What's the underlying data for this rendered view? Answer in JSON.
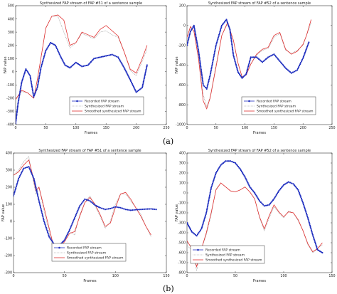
{
  "captions": [
    "(a)",
    "(b)"
  ],
  "chart_data": [
    {
      "type": "line",
      "title": "Synthesized FAP stream of FAP #51 of a sentence sample",
      "xlabel": "Frames",
      "ylabel": "FAP value",
      "xlim": [
        0,
        250
      ],
      "ylim": [
        -400,
        500
      ],
      "xticks": [
        0,
        50,
        100,
        150,
        200,
        250
      ],
      "yticks": [
        -400,
        -300,
        -200,
        -100,
        0,
        100,
        200,
        300,
        400,
        500
      ],
      "legend_position": "bottom-right",
      "series": [
        {
          "name": "Recorded FAP stream",
          "color": "#1f2fbf",
          "style": "dots-line",
          "x": [
            0,
            4,
            10,
            17,
            24,
            30,
            36,
            42,
            50,
            58,
            66,
            74,
            82,
            90,
            100,
            110,
            120,
            130,
            140,
            150,
            160,
            170,
            180,
            190,
            200,
            210,
            218
          ],
          "y": [
            -390,
            -240,
            -80,
            20,
            -30,
            -190,
            -120,
            30,
            160,
            220,
            200,
            120,
            50,
            30,
            70,
            40,
            50,
            100,
            110,
            120,
            130,
            110,
            30,
            -60,
            -155,
            -120,
            50
          ]
        },
        {
          "name": "Synthesized FAP stream",
          "color": "#999999",
          "style": "thin",
          "x": [
            0,
            10,
            20,
            30,
            36,
            44,
            50,
            60,
            70,
            80,
            90,
            100,
            110,
            120,
            130,
            140,
            150,
            160,
            170,
            180,
            190,
            200,
            210,
            218
          ],
          "y": [
            -210,
            -150,
            -160,
            -200,
            -60,
            160,
            330,
            420,
            420,
            300,
            180,
            220,
            290,
            270,
            250,
            300,
            310,
            280,
            260,
            150,
            10,
            -30,
            80,
            170
          ]
        },
        {
          "name": "Smoothed synthesized FAP stream",
          "color": "#e03030",
          "style": "line",
          "x": [
            0,
            10,
            20,
            30,
            36,
            44,
            50,
            60,
            70,
            80,
            90,
            100,
            110,
            120,
            130,
            140,
            150,
            160,
            170,
            180,
            190,
            200,
            210,
            218
          ],
          "y": [
            -210,
            -140,
            -160,
            -200,
            -60,
            160,
            330,
            420,
            430,
            390,
            200,
            220,
            300,
            280,
            260,
            320,
            350,
            310,
            270,
            150,
            20,
            -10,
            100,
            200
          ]
        }
      ]
    },
    {
      "type": "line",
      "title": "Synthesized FAP stream of FAP #52 of a sentence sample",
      "xlabel": "Frames",
      "ylabel": "FAP value",
      "xlim": [
        0,
        250
      ],
      "ylim": [
        -1000,
        200
      ],
      "xticks": [
        0,
        50,
        100,
        150,
        200,
        250
      ],
      "yticks": [
        -1000,
        -800,
        -600,
        -400,
        -200,
        0,
        200
      ],
      "legend_position": "bottom-right",
      "series": [
        {
          "name": "Recorded FAP stream",
          "color": "#1f2fbf",
          "style": "dots-line",
          "x": [
            0,
            6,
            12,
            20,
            28,
            34,
            40,
            50,
            60,
            68,
            74,
            80,
            88,
            95,
            102,
            110,
            120,
            130,
            140,
            150,
            160,
            170,
            180,
            190,
            200,
            210
          ],
          "y": [
            -200,
            -60,
            0,
            -260,
            -600,
            -640,
            -500,
            -200,
            0,
            60,
            -40,
            -300,
            -470,
            -530,
            -490,
            -320,
            -320,
            -370,
            -320,
            -290,
            -360,
            -430,
            -480,
            -450,
            -330,
            -170
          ]
        },
        {
          "name": "Synthesized FAP stream",
          "color": "#999999",
          "style": "thin",
          "x": [
            0,
            6,
            12,
            20,
            28,
            34,
            40,
            50,
            60,
            70,
            80,
            88,
            95,
            102,
            110,
            120,
            130,
            140,
            150,
            160,
            170,
            180,
            190,
            200,
            206,
            210,
            214
          ],
          "y": [
            -120,
            -20,
            -60,
            -320,
            -700,
            -820,
            -720,
            -400,
            -100,
            20,
            -150,
            -380,
            -520,
            -500,
            -390,
            -300,
            -250,
            -230,
            -120,
            -80,
            -250,
            -280,
            -250,
            -200,
            -100,
            -40,
            30
          ]
        },
        {
          "name": "Smoothed synthesized FAP stream",
          "color": "#e03030",
          "style": "line",
          "x": [
            0,
            6,
            12,
            20,
            28,
            34,
            40,
            50,
            60,
            70,
            80,
            88,
            95,
            102,
            110,
            120,
            130,
            140,
            150,
            160,
            170,
            180,
            190,
            200,
            206,
            210,
            214
          ],
          "y": [
            -120,
            -10,
            -60,
            -340,
            -760,
            -840,
            -730,
            -420,
            -100,
            30,
            -150,
            -380,
            -520,
            -500,
            -390,
            -290,
            -240,
            -220,
            -100,
            -70,
            -240,
            -290,
            -260,
            -190,
            -100,
            -20,
            60
          ]
        }
      ]
    },
    {
      "type": "line",
      "title": "Synthesized FAP stream of FAP #51 of a sentence sample",
      "xlabel": "Frames",
      "ylabel": "FAP value",
      "xlim": [
        0,
        150
      ],
      "ylim": [
        -300,
        400
      ],
      "xticks": [
        0,
        50,
        100,
        150
      ],
      "yticks": [
        -300,
        -200,
        -100,
        0,
        100,
        200,
        300,
        400
      ],
      "legend_position": "bottom-center",
      "series": [
        {
          "name": "Recorded FAP stream",
          "color": "#1f2fbf",
          "style": "dots-line",
          "x": [
            0,
            5,
            10,
            15,
            20,
            25,
            30,
            35,
            40,
            45,
            50,
            55,
            60,
            65,
            70,
            75,
            80,
            85,
            90,
            95,
            100,
            105,
            110,
            115,
            120,
            125,
            130,
            135,
            140
          ],
          "y": [
            150,
            250,
            310,
            320,
            250,
            120,
            0,
            -90,
            -135,
            -140,
            -110,
            -50,
            20,
            90,
            130,
            120,
            95,
            80,
            70,
            75,
            85,
            80,
            70,
            65,
            68,
            70,
            72,
            73,
            70
          ]
        },
        {
          "name": "Synthesized FAP stream",
          "color": "#999999",
          "style": "thin",
          "x": [
            0,
            5,
            10,
            15,
            18,
            22,
            25,
            30,
            35,
            40,
            45,
            50,
            55,
            60,
            65,
            70,
            75,
            80,
            85,
            90,
            95,
            100,
            105,
            110,
            115,
            120,
            125,
            130,
            135
          ],
          "y": [
            270,
            300,
            350,
            380,
            280,
            160,
            200,
            60,
            -60,
            -200,
            -150,
            -110,
            -60,
            -80,
            40,
            110,
            150,
            90,
            30,
            -40,
            0,
            100,
            160,
            160,
            120,
            80,
            40,
            -30,
            -90
          ]
        },
        {
          "name": "Smoothed synthesized FAP stream",
          "color": "#e03030",
          "style": "line",
          "x": [
            0,
            5,
            10,
            15,
            18,
            22,
            25,
            30,
            35,
            40,
            45,
            50,
            55,
            60,
            65,
            70,
            75,
            80,
            85,
            90,
            95,
            100,
            105,
            110,
            115,
            120,
            125,
            130,
            135
          ],
          "y": [
            270,
            290,
            330,
            360,
            290,
            180,
            200,
            80,
            -40,
            -160,
            -150,
            -120,
            -70,
            -60,
            30,
            110,
            140,
            100,
            40,
            -30,
            -10,
            80,
            160,
            170,
            130,
            80,
            30,
            -30,
            -80
          ]
        }
      ]
    },
    {
      "type": "line",
      "title": "Synthesized FAP stream of FAP #52 of a sentence sample",
      "xlabel": "Frames",
      "ylabel": "FAP value",
      "xlim": [
        0,
        150
      ],
      "ylim": [
        -800,
        400
      ],
      "xticks": [
        0,
        50,
        100,
        150
      ],
      "yticks": [
        -800,
        -700,
        -600,
        -500,
        -400,
        -300,
        -200,
        -100,
        0,
        100,
        200,
        300,
        400
      ],
      "legend_position": "bottom-left",
      "series": [
        {
          "name": "Recorded FAP stream",
          "color": "#1f2fbf",
          "style": "dots-line",
          "x": [
            0,
            5,
            10,
            15,
            20,
            25,
            30,
            35,
            40,
            45,
            50,
            55,
            60,
            65,
            70,
            75,
            80,
            85,
            90,
            95,
            100,
            105,
            110,
            115,
            120,
            125,
            130,
            135,
            140
          ],
          "y": [
            -300,
            -390,
            -430,
            -360,
            -200,
            50,
            200,
            280,
            320,
            320,
            300,
            240,
            160,
            60,
            0,
            -80,
            -130,
            -120,
            -60,
            20,
            80,
            110,
            90,
            30,
            -100,
            -250,
            -420,
            -570,
            -600
          ]
        },
        {
          "name": "Synthesized FAP stream",
          "color": "#999999",
          "style": "thin",
          "x": [
            0,
            5,
            10,
            15,
            20,
            25,
            30,
            35,
            40,
            45,
            50,
            55,
            60,
            65,
            70,
            75,
            80,
            85,
            90,
            95,
            100,
            105,
            110,
            115,
            120,
            125,
            130,
            135,
            140
          ],
          "y": [
            -520,
            -580,
            -780,
            -560,
            -420,
            -220,
            40,
            100,
            60,
            20,
            10,
            30,
            60,
            10,
            -60,
            -250,
            -380,
            -250,
            -140,
            -200,
            -250,
            -180,
            -200,
            -280,
            -380,
            -520,
            -600,
            -560,
            -520
          ]
        },
        {
          "name": "Smoothed synthesized FAP stream",
          "color": "#e03030",
          "style": "line",
          "x": [
            0,
            5,
            10,
            15,
            20,
            25,
            30,
            35,
            40,
            45,
            50,
            55,
            60,
            65,
            70,
            75,
            80,
            85,
            90,
            95,
            100,
            105,
            110,
            115,
            120,
            125,
            130,
            135,
            140
          ],
          "y": [
            -480,
            -560,
            -740,
            -560,
            -400,
            -200,
            30,
            100,
            60,
            20,
            10,
            30,
            60,
            10,
            -60,
            -240,
            -360,
            -230,
            -120,
            -190,
            -240,
            -190,
            -200,
            -270,
            -380,
            -510,
            -590,
            -560,
            -500
          ]
        }
      ]
    }
  ]
}
